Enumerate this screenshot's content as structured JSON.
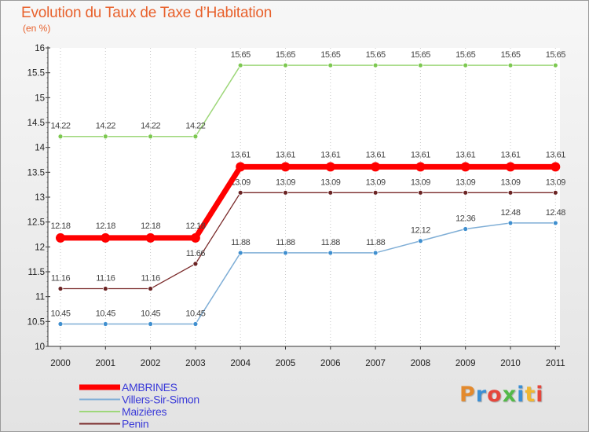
{
  "title": "Evolution du Taux de Taxe d’Habitation",
  "subtitle": "(en %)",
  "logo": {
    "letters": [
      "P",
      "r",
      "o",
      "x",
      "i",
      "t",
      "i"
    ],
    "colors": [
      "#e38a2e",
      "#3b8fd4",
      "#e5473c",
      "#53b948",
      "#3b8fd4",
      "#f0b732",
      "#e5473c"
    ]
  },
  "chart_data": {
    "type": "line",
    "x": [
      "2000",
      "2001",
      "2002",
      "2003",
      "2004",
      "2005",
      "2006",
      "2007",
      "2008",
      "2009",
      "2010",
      "2011"
    ],
    "ylim": [
      10,
      16
    ],
    "yticks": [
      "10",
      "10.5",
      "11",
      "11.5",
      "12",
      "12.5",
      "13",
      "13.5",
      "14",
      "14.5",
      "15",
      "15.5",
      "16"
    ],
    "grid": "vertical-dashed",
    "legend_position": "bottom-left",
    "series": [
      {
        "name": "Maizières",
        "color": "#9ed77a",
        "marker": "#7cc850",
        "width": 1.5,
        "r": 3,
        "values": [
          14.22,
          14.22,
          14.22,
          14.22,
          15.65,
          15.65,
          15.65,
          15.65,
          15.65,
          15.65,
          15.65,
          15.65
        ],
        "labels": [
          "14.22",
          "14.22",
          "14.22",
          "14.22",
          "15.65",
          "15.65",
          "15.65",
          "15.65",
          "15.65",
          "15.65",
          "15.65",
          "15.65"
        ]
      },
      {
        "name": "Penin",
        "color": "#7a2a2a",
        "marker": "#6b2424",
        "width": 1.3,
        "r": 3,
        "values": [
          11.16,
          11.16,
          11.16,
          11.66,
          13.09,
          13.09,
          13.09,
          13.09,
          13.09,
          13.09,
          13.09,
          13.09
        ],
        "labels": [
          "11.16",
          "11.16",
          "11.16",
          "11.66",
          "13.09",
          "13.09",
          "13.09",
          "13.09",
          "13.09",
          "13.09",
          "13.09",
          "13.09"
        ]
      },
      {
        "name": "Villers-Sir-Simon",
        "color": "#7faed6",
        "marker": "#3f8fcf",
        "width": 1.5,
        "r": 3,
        "values": [
          10.45,
          10.45,
          10.45,
          10.45,
          11.88,
          11.88,
          11.88,
          11.88,
          12.12,
          12.36,
          12.48,
          12.48
        ],
        "labels": [
          "10.45",
          "10.45",
          "10.45",
          "10.45",
          "11.88",
          "11.88",
          "11.88",
          "11.88",
          "12.12",
          "12.36",
          "12.48",
          "12.48"
        ]
      },
      {
        "name": "AMBRINES",
        "color": "#ff0000",
        "marker": "#ff0000",
        "width": 7,
        "r": 6,
        "values": [
          12.18,
          12.18,
          12.18,
          12.18,
          13.61,
          13.61,
          13.61,
          13.61,
          13.61,
          13.61,
          13.61,
          13.61
        ],
        "labels": [
          "12.18",
          "12.18",
          "12.18",
          "12.18",
          "13.61",
          "13.61",
          "13.61",
          "13.61",
          "13.61",
          "13.61",
          "13.61",
          "13.61"
        ]
      }
    ],
    "legend": [
      {
        "name": "AMBRINES",
        "color": "#ff0000",
        "width": 7
      },
      {
        "name": "Villers-Sir-Simon",
        "color": "#7faed6",
        "width": 2
      },
      {
        "name": "Maizières",
        "color": "#9ed77a",
        "width": 2
      },
      {
        "name": "Penin",
        "color": "#7a2a2a",
        "width": 2
      }
    ]
  }
}
